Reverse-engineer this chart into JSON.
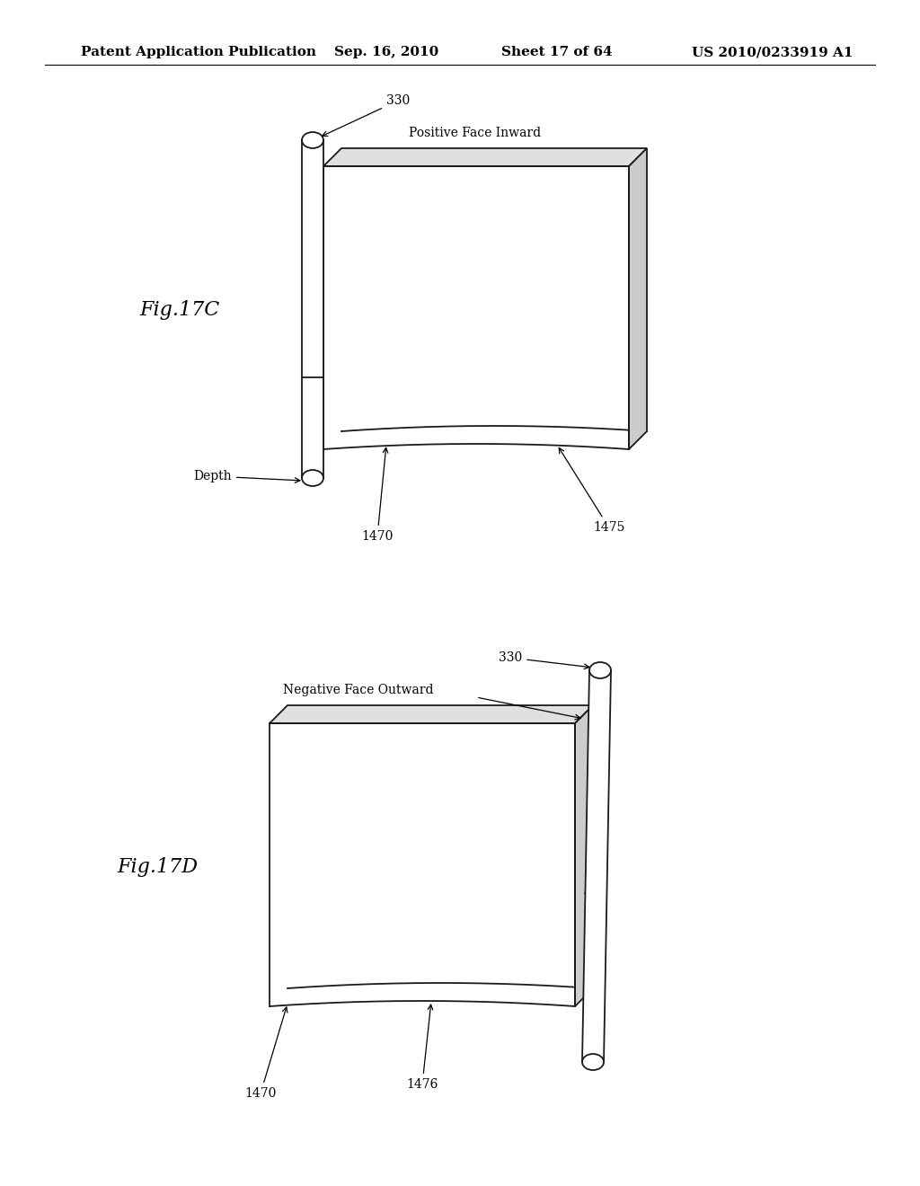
{
  "background_color": "#ffffff",
  "header_text": "Patent Application Publication",
  "header_date": "Sep. 16, 2010",
  "header_sheet": "Sheet 17 of 64",
  "header_patent": "US 2010/0233919 A1",
  "header_fontsize": 11,
  "fig17c_label": "Fig.17C",
  "fig17d_label": "Fig.17D",
  "annotation_fontsize": 10,
  "label_fontsize": 14
}
